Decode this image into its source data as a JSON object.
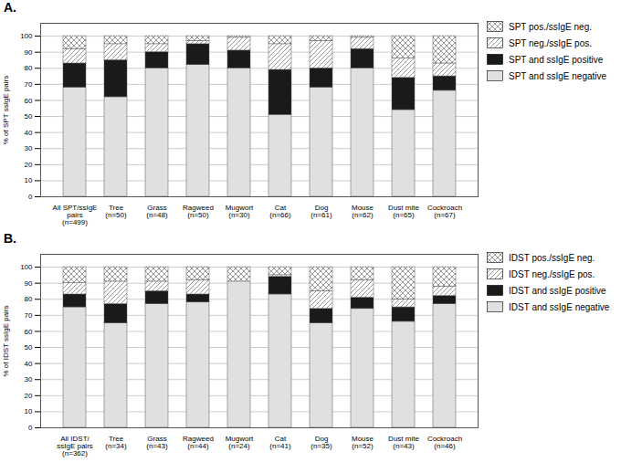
{
  "chart_data": [
    {
      "type": "bar",
      "stacked": true,
      "title": "A.",
      "ylabel": "% of SPT ssIgE pairs",
      "categories": [
        "All SPT/ssIgE\npairs\n(n=499)",
        "Tree\n(n=50)",
        "Grass\n(n=48)",
        "Ragweed\n(n=50)",
        "Mugwort\n(n=30)",
        "Cat\n(n=66)",
        "Dog\n(n=61)",
        "Mouse\n(n=62)",
        "Dust mite\n(n=65)",
        "Cockroach\n(n=67)"
      ],
      "series": [
        {
          "name": "SPT pos./ssIgE neg.",
          "color": "#ffffff",
          "values": [
            8,
            5,
            5,
            3,
            1,
            5,
            3,
            1,
            14,
            17
          ]
        },
        {
          "name": "SPT neg./ssIgE pos.",
          "color": "#ffffff",
          "values": [
            9,
            10,
            5,
            2,
            8,
            16,
            17,
            7,
            12,
            8
          ]
        },
        {
          "name": "SPT and ssIgE positive",
          "color": "#1a1a1a",
          "values": [
            15,
            23,
            10,
            13,
            11,
            28,
            12,
            12,
            20,
            9
          ]
        },
        {
          "name": "SPT and ssIgE negative",
          "color": "#e0e0e0",
          "values": [
            68,
            62,
            80,
            82,
            80,
            51,
            68,
            80,
            54,
            66
          ]
        }
      ],
      "ylim": [
        0,
        108
      ],
      "yticks": [
        0,
        10,
        20,
        30,
        40,
        50,
        60,
        70,
        80,
        90,
        100
      ],
      "grid": true,
      "legend": "right"
    },
    {
      "type": "bar",
      "stacked": true,
      "title": "B.",
      "ylabel": "% of IDST ssIgE pairs",
      "categories": [
        "All IDST/\nssIgE pairs\n(n=362)",
        "Tree\n(n=34)",
        "Grass\n(n=43)",
        "Ragweed\n(n=44)",
        "Mugwort\n(n=24)",
        "Cat\n(n=41)",
        "Dog\n(n=35)",
        "Mouse\n(n=52)",
        "Dust mite\n(n=43)",
        "Cockroach\n(n=46)"
      ],
      "series": [
        {
          "name": "IDST pos./ssIgE neg.",
          "color": "#ffffff",
          "values": [
            10,
            9,
            9,
            8,
            9,
            5,
            15,
            8,
            20,
            12
          ]
        },
        {
          "name": "IDST neg./ssIgE pos.",
          "color": "#ffffff",
          "values": [
            7,
            14,
            6,
            9,
            0,
            1,
            11,
            11,
            5,
            6
          ]
        },
        {
          "name": "IDST and ssIgE positive",
          "color": "#1a1a1a",
          "values": [
            8,
            12,
            8,
            5,
            0,
            11,
            9,
            7,
            9,
            5
          ]
        },
        {
          "name": "IDST and ssIgE negative",
          "color": "#e0e0e0",
          "values": [
            75,
            65,
            77,
            78,
            91,
            83,
            65,
            74,
            66,
            77
          ]
        }
      ],
      "ylim": [
        0,
        108
      ],
      "yticks": [
        0,
        10,
        20,
        30,
        40,
        50,
        60,
        70,
        80,
        90,
        100
      ],
      "grid": true,
      "legend": "right"
    }
  ]
}
